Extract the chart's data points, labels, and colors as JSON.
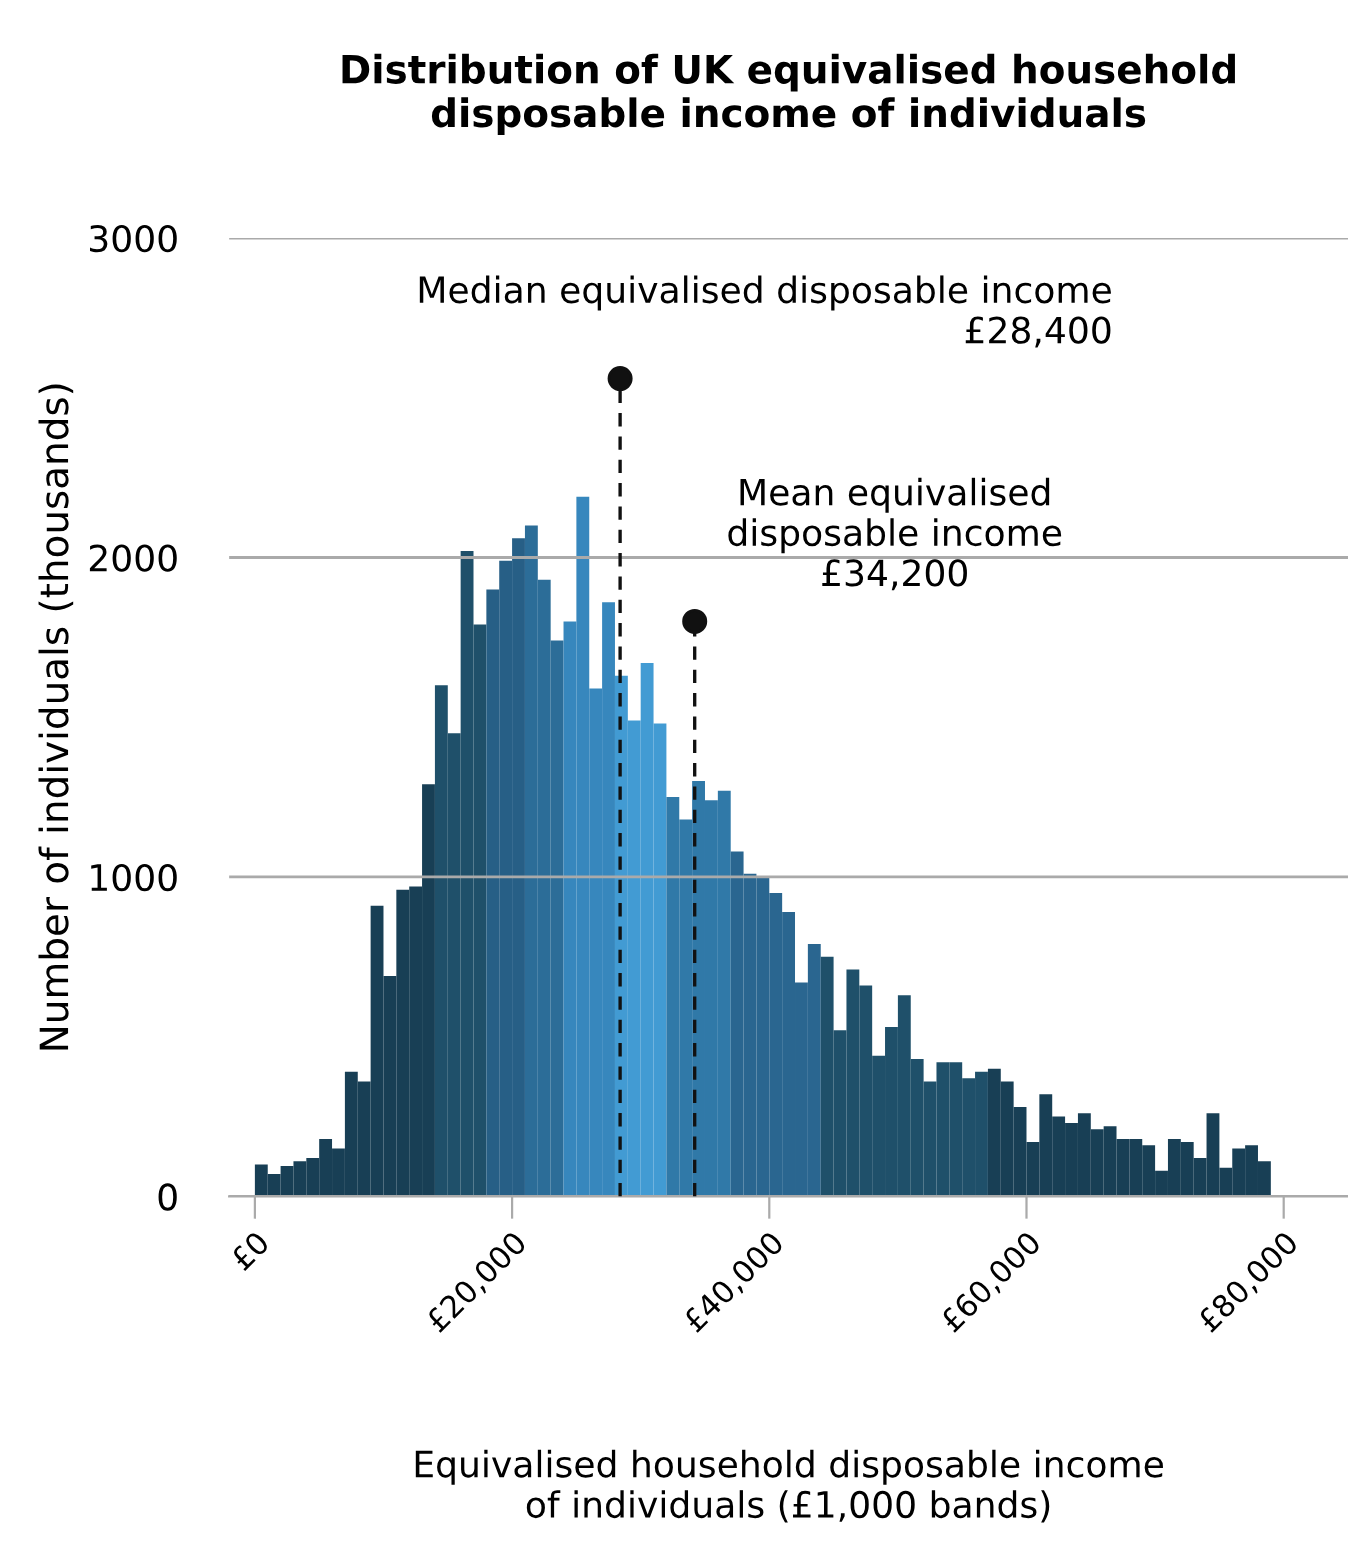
{
  "chart_data": {
    "type": "histogram",
    "title": "Distribution of UK equivalised household\ndisposable income of individuals",
    "xlabel": "Equivalised household disposable income\nof individuals (£1,000 bands)",
    "ylabel": "Number of individuals (thousands)",
    "bins": [
      0,
      1000,
      2000,
      3000,
      4000,
      5000,
      6000,
      7000,
      8000,
      9000,
      10000,
      11000,
      12000,
      13000,
      14000,
      15000,
      16000,
      17000,
      18000,
      19000,
      20000,
      21000,
      22000,
      23000,
      24000,
      25000,
      26000,
      27000,
      28000,
      29000,
      30000,
      31000,
      32000,
      33000,
      34000,
      35000,
      36000,
      37000,
      38000,
      39000,
      40000,
      41000,
      42000,
      43000,
      44000,
      45000,
      46000,
      47000,
      48000,
      49000,
      50000,
      51000,
      52000,
      53000,
      54000,
      55000,
      56000,
      57000,
      58000,
      59000,
      60000,
      61000,
      62000,
      63000,
      64000,
      65000,
      66000,
      67000,
      68000,
      69000,
      70000,
      71000,
      72000,
      73000,
      74000,
      75000,
      76000,
      77000,
      78000,
      79000
    ],
    "values": [
      100,
      70,
      95,
      110,
      120,
      180,
      150,
      390,
      360,
      910,
      690,
      960,
      970,
      1290,
      1600,
      1450,
      2020,
      1790,
      1900,
      1990,
      2060,
      2100,
      1930,
      1740,
      1800,
      2190,
      1590,
      1860,
      1630,
      1490,
      1670,
      1480,
      1250,
      1180,
      1300,
      1240,
      1270,
      1080,
      1010,
      1000,
      950,
      890,
      670,
      790,
      750,
      520,
      710,
      660,
      440,
      530,
      630,
      430,
      360,
      420,
      420,
      370,
      390,
      400,
      360,
      280,
      170,
      320,
      250,
      230,
      260,
      210,
      220,
      180,
      180,
      160,
      80,
      180,
      170,
      120,
      260,
      90,
      150,
      160,
      110
    ],
    "colors": [
      "#183f55",
      "#183f55",
      "#183f55",
      "#183f55",
      "#183f55",
      "#183f55",
      "#183f55",
      "#183f55",
      "#183f55",
      "#183f55",
      "#183f55",
      "#183f55",
      "#183f55",
      "#183f55",
      "#1f506a",
      "#1f506a",
      "#1f506a",
      "#1f506a",
      "#275f86",
      "#275f86",
      "#275f86",
      "#2c6d98",
      "#2c6d98",
      "#2c6d98",
      "#3787bd",
      "#3787bd",
      "#3787bd",
      "#3787bd",
      "#429bd3",
      "#429bd3",
      "#429bd3",
      "#429bd3",
      "#3079a8",
      "#3079a8",
      "#3079a8",
      "#3079a8",
      "#3079a8",
      "#2a6690",
      "#2a6690",
      "#2a6690",
      "#2a6690",
      "#2a6690",
      "#2a6690",
      "#2a6690",
      "#1f506a",
      "#1f506a",
      "#1f506a",
      "#1f506a",
      "#1f506a",
      "#1f506a",
      "#1f506a",
      "#1f506a",
      "#1f506a",
      "#1f506a",
      "#1f506a",
      "#1f506a",
      "#1f506a",
      "#183f55",
      "#183f55",
      "#183f55",
      "#183f55",
      "#183f55",
      "#183f55",
      "#183f55",
      "#183f55",
      "#183f55",
      "#183f55",
      "#183f55",
      "#183f55",
      "#183f55",
      "#183f55",
      "#183f55",
      "#183f55",
      "#183f55",
      "#183f55",
      "#183f55",
      "#183f55",
      "#183f55",
      "#183f55"
    ],
    "xlim": [
      -2000,
      85000
    ],
    "xticks": [
      {
        "value": 0,
        "label": "£0"
      },
      {
        "value": 20000,
        "label": "£20,000"
      },
      {
        "value": 40000,
        "label": "£40,000"
      },
      {
        "value": 60000,
        "label": "£60,000"
      },
      {
        "value": 80000,
        "label": "£80,000"
      }
    ],
    "ylim": [
      0,
      3000
    ],
    "yticks": [
      0,
      1000,
      2000,
      3000
    ],
    "grid": "y",
    "ref_lines": [
      {
        "axis": "x",
        "value": 28400,
        "line_style": "dashed",
        "color": "#111111"
      },
      {
        "axis": "x",
        "value": 34200,
        "line_style": "dashed",
        "color": "#111111"
      }
    ],
    "annotations": [
      {
        "text": "Median equivalised disposable income\n£28,400",
        "x": 28400,
        "y": 2560
      },
      {
        "text": "Mean equivalised\ndisposable income\n£34,200",
        "x": 34200,
        "y": 1800
      }
    ]
  }
}
